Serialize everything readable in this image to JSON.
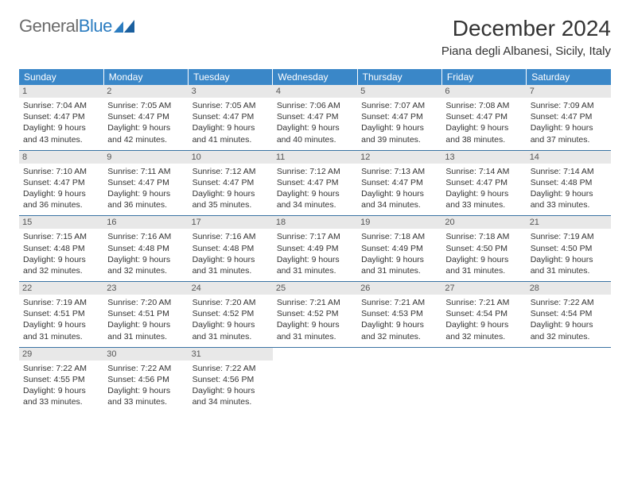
{
  "brand": {
    "name_part1": "General",
    "name_part2": "Blue"
  },
  "title": "December 2024",
  "location": "Piana degli Albanesi, Sicily, Italy",
  "colors": {
    "header_bg": "#3a87c8",
    "header_text": "#ffffff",
    "row_border": "#3a73a3",
    "daynum_bg": "#e8e8e8",
    "text": "#333333",
    "logo_gray": "#6b6b6b",
    "logo_blue": "#2b7cc0"
  },
  "weekdays": [
    "Sunday",
    "Monday",
    "Tuesday",
    "Wednesday",
    "Thursday",
    "Friday",
    "Saturday"
  ],
  "first_weekday_index": 0,
  "days": [
    {
      "n": 1,
      "sunrise": "7:04 AM",
      "sunset": "4:47 PM",
      "daylight": "9 hours and 43 minutes."
    },
    {
      "n": 2,
      "sunrise": "7:05 AM",
      "sunset": "4:47 PM",
      "daylight": "9 hours and 42 minutes."
    },
    {
      "n": 3,
      "sunrise": "7:05 AM",
      "sunset": "4:47 PM",
      "daylight": "9 hours and 41 minutes."
    },
    {
      "n": 4,
      "sunrise": "7:06 AM",
      "sunset": "4:47 PM",
      "daylight": "9 hours and 40 minutes."
    },
    {
      "n": 5,
      "sunrise": "7:07 AM",
      "sunset": "4:47 PM",
      "daylight": "9 hours and 39 minutes."
    },
    {
      "n": 6,
      "sunrise": "7:08 AM",
      "sunset": "4:47 PM",
      "daylight": "9 hours and 38 minutes."
    },
    {
      "n": 7,
      "sunrise": "7:09 AM",
      "sunset": "4:47 PM",
      "daylight": "9 hours and 37 minutes."
    },
    {
      "n": 8,
      "sunrise": "7:10 AM",
      "sunset": "4:47 PM",
      "daylight": "9 hours and 36 minutes."
    },
    {
      "n": 9,
      "sunrise": "7:11 AM",
      "sunset": "4:47 PM",
      "daylight": "9 hours and 36 minutes."
    },
    {
      "n": 10,
      "sunrise": "7:12 AM",
      "sunset": "4:47 PM",
      "daylight": "9 hours and 35 minutes."
    },
    {
      "n": 11,
      "sunrise": "7:12 AM",
      "sunset": "4:47 PM",
      "daylight": "9 hours and 34 minutes."
    },
    {
      "n": 12,
      "sunrise": "7:13 AM",
      "sunset": "4:47 PM",
      "daylight": "9 hours and 34 minutes."
    },
    {
      "n": 13,
      "sunrise": "7:14 AM",
      "sunset": "4:47 PM",
      "daylight": "9 hours and 33 minutes."
    },
    {
      "n": 14,
      "sunrise": "7:14 AM",
      "sunset": "4:48 PM",
      "daylight": "9 hours and 33 minutes."
    },
    {
      "n": 15,
      "sunrise": "7:15 AM",
      "sunset": "4:48 PM",
      "daylight": "9 hours and 32 minutes."
    },
    {
      "n": 16,
      "sunrise": "7:16 AM",
      "sunset": "4:48 PM",
      "daylight": "9 hours and 32 minutes."
    },
    {
      "n": 17,
      "sunrise": "7:16 AM",
      "sunset": "4:48 PM",
      "daylight": "9 hours and 31 minutes."
    },
    {
      "n": 18,
      "sunrise": "7:17 AM",
      "sunset": "4:49 PM",
      "daylight": "9 hours and 31 minutes."
    },
    {
      "n": 19,
      "sunrise": "7:18 AM",
      "sunset": "4:49 PM",
      "daylight": "9 hours and 31 minutes."
    },
    {
      "n": 20,
      "sunrise": "7:18 AM",
      "sunset": "4:50 PM",
      "daylight": "9 hours and 31 minutes."
    },
    {
      "n": 21,
      "sunrise": "7:19 AM",
      "sunset": "4:50 PM",
      "daylight": "9 hours and 31 minutes."
    },
    {
      "n": 22,
      "sunrise": "7:19 AM",
      "sunset": "4:51 PM",
      "daylight": "9 hours and 31 minutes."
    },
    {
      "n": 23,
      "sunrise": "7:20 AM",
      "sunset": "4:51 PM",
      "daylight": "9 hours and 31 minutes."
    },
    {
      "n": 24,
      "sunrise": "7:20 AM",
      "sunset": "4:52 PM",
      "daylight": "9 hours and 31 minutes."
    },
    {
      "n": 25,
      "sunrise": "7:21 AM",
      "sunset": "4:52 PM",
      "daylight": "9 hours and 31 minutes."
    },
    {
      "n": 26,
      "sunrise": "7:21 AM",
      "sunset": "4:53 PM",
      "daylight": "9 hours and 32 minutes."
    },
    {
      "n": 27,
      "sunrise": "7:21 AM",
      "sunset": "4:54 PM",
      "daylight": "9 hours and 32 minutes."
    },
    {
      "n": 28,
      "sunrise": "7:22 AM",
      "sunset": "4:54 PM",
      "daylight": "9 hours and 32 minutes."
    },
    {
      "n": 29,
      "sunrise": "7:22 AM",
      "sunset": "4:55 PM",
      "daylight": "9 hours and 33 minutes."
    },
    {
      "n": 30,
      "sunrise": "7:22 AM",
      "sunset": "4:56 PM",
      "daylight": "9 hours and 33 minutes."
    },
    {
      "n": 31,
      "sunrise": "7:22 AM",
      "sunset": "4:56 PM",
      "daylight": "9 hours and 34 minutes."
    }
  ],
  "labels": {
    "sunrise": "Sunrise:",
    "sunset": "Sunset:",
    "daylight": "Daylight:"
  }
}
